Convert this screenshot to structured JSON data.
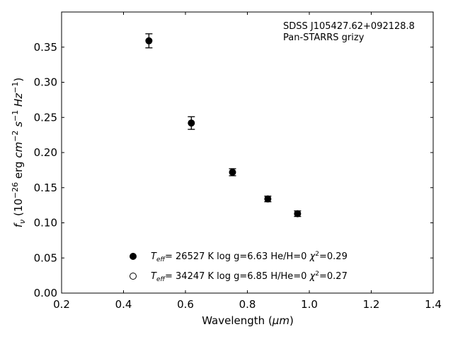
{
  "chart_data": {
    "type": "scatter",
    "xlabel_text": "Wavelength (",
    "xlabel_unit": "μm",
    "xlabel_close": ")",
    "ylabel": {
      "pre": "f",
      "pre_sub": "ν",
      "mid": " (10",
      "exp1": "−26",
      "unit_erg": " erg ",
      "cm": "cm",
      "exp2": "−2",
      "s": " s",
      "exp3": "−1",
      "hz": " Hz",
      "exp4": "−1",
      "close": ")"
    },
    "xlim": [
      0.2,
      1.4
    ],
    "ylim": [
      0.0,
      0.4
    ],
    "x_ticks": [
      "0.2",
      "0.4",
      "0.6",
      "0.8",
      "1.0",
      "1.2",
      "1.4"
    ],
    "y_ticks": [
      "0.00",
      "0.05",
      "0.10",
      "0.15",
      "0.20",
      "0.25",
      "0.30",
      "0.35"
    ],
    "grid": false,
    "annotation": {
      "line1": "SDSS J105427.62+092128.8",
      "line2": "Pan-STARRS grizy"
    },
    "series": [
      {
        "name": "Teff= 26527 K  log g=6.63  He/H=0  χ2=0.29",
        "marker": "filled",
        "points": [
          {
            "x": 0.482,
            "y": 0.359,
            "err": 0.01
          },
          {
            "x": 0.619,
            "y": 0.242,
            "err": 0.009
          },
          {
            "x": 0.752,
            "y": 0.172,
            "err": 0.005
          },
          {
            "x": 0.866,
            "y": 0.134,
            "err": 0.004
          },
          {
            "x": 0.962,
            "y": 0.113,
            "err": 0.004
          }
        ]
      },
      {
        "name": "Teff= 34247 K  log g=6.85  H/He=0  χ2=0.27",
        "marker": "open",
        "points": []
      }
    ],
    "legend": [
      {
        "T": "T",
        "eff": "eff",
        "value": "= 26527 K  log g=6.63  He/H=0  ",
        "chi": "χ",
        "chi_exp": "2",
        "chi_val": "=0.29"
      },
      {
        "T": "T",
        "eff": "eff",
        "value": "= 34247 K  log g=6.85  H/He=0  ",
        "chi": "χ",
        "chi_exp": "2",
        "chi_val": "=0.27"
      }
    ],
    "legend_position": "lower-left",
    "colors": {
      "marker": "#000000",
      "axis": "#000000"
    }
  }
}
